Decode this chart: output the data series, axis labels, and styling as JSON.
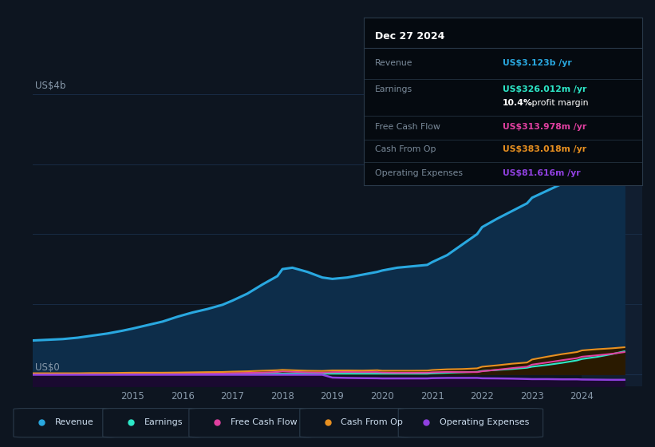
{
  "bg_color": "#0d1520",
  "chart_bg": "#0d1520",
  "grid_color": "#1a2f4a",
  "years": [
    2013.0,
    2013.3,
    2013.6,
    2013.9,
    2014.2,
    2014.5,
    2014.8,
    2015.0,
    2015.3,
    2015.6,
    2015.9,
    2016.2,
    2016.5,
    2016.8,
    2017.0,
    2017.3,
    2017.6,
    2017.9,
    2018.0,
    2018.2,
    2018.5,
    2018.8,
    2019.0,
    2019.3,
    2019.6,
    2019.9,
    2020.0,
    2020.3,
    2020.6,
    2020.9,
    2021.0,
    2021.3,
    2021.6,
    2021.9,
    2022.0,
    2022.3,
    2022.6,
    2022.9,
    2023.0,
    2023.3,
    2023.6,
    2023.9,
    2024.0,
    2024.3,
    2024.6,
    2024.85
  ],
  "revenue": [
    0.48,
    0.49,
    0.5,
    0.52,
    0.55,
    0.58,
    0.62,
    0.65,
    0.7,
    0.75,
    0.82,
    0.88,
    0.93,
    0.99,
    1.05,
    1.15,
    1.28,
    1.4,
    1.5,
    1.52,
    1.46,
    1.38,
    1.36,
    1.38,
    1.42,
    1.46,
    1.48,
    1.52,
    1.54,
    1.56,
    1.6,
    1.7,
    1.85,
    2.0,
    2.1,
    2.22,
    2.33,
    2.44,
    2.52,
    2.62,
    2.72,
    2.84,
    2.93,
    3.02,
    3.08,
    3.123
  ],
  "earnings": [
    0.005,
    0.005,
    0.005,
    0.005,
    0.005,
    0.005,
    0.005,
    0.005,
    0.005,
    0.005,
    0.005,
    0.005,
    0.005,
    0.005,
    0.005,
    0.005,
    0.005,
    0.005,
    0.005,
    0.005,
    0.005,
    0.005,
    0.005,
    0.005,
    0.005,
    0.005,
    0.005,
    0.005,
    0.005,
    0.005,
    0.01,
    0.018,
    0.025,
    0.032,
    0.045,
    0.058,
    0.072,
    0.09,
    0.105,
    0.13,
    0.16,
    0.195,
    0.215,
    0.245,
    0.285,
    0.326
  ],
  "free_cash_flow": [
    0.005,
    0.005,
    0.005,
    0.005,
    0.005,
    0.005,
    0.005,
    0.005,
    0.005,
    0.005,
    0.005,
    0.01,
    0.01,
    0.01,
    0.015,
    0.018,
    0.022,
    0.03,
    0.038,
    0.032,
    0.026,
    0.022,
    0.028,
    0.03,
    0.028,
    0.028,
    0.022,
    0.018,
    0.018,
    0.02,
    0.025,
    0.03,
    0.028,
    0.028,
    0.04,
    0.062,
    0.085,
    0.105,
    0.135,
    0.165,
    0.198,
    0.228,
    0.248,
    0.268,
    0.29,
    0.314
  ],
  "cash_from_op": [
    0.012,
    0.012,
    0.012,
    0.012,
    0.015,
    0.015,
    0.018,
    0.02,
    0.02,
    0.02,
    0.022,
    0.025,
    0.028,
    0.03,
    0.035,
    0.04,
    0.048,
    0.055,
    0.06,
    0.055,
    0.048,
    0.045,
    0.052,
    0.052,
    0.05,
    0.055,
    0.048,
    0.048,
    0.048,
    0.05,
    0.058,
    0.068,
    0.072,
    0.082,
    0.105,
    0.125,
    0.148,
    0.165,
    0.208,
    0.248,
    0.285,
    0.315,
    0.338,
    0.355,
    0.368,
    0.383
  ],
  "operating_expenses": [
    -0.01,
    -0.01,
    -0.01,
    -0.01,
    -0.01,
    -0.01,
    -0.01,
    -0.01,
    -0.01,
    -0.01,
    -0.01,
    -0.01,
    -0.01,
    -0.01,
    -0.01,
    -0.01,
    -0.01,
    -0.01,
    -0.01,
    -0.01,
    -0.01,
    -0.01,
    -0.05,
    -0.055,
    -0.058,
    -0.06,
    -0.062,
    -0.062,
    -0.062,
    -0.062,
    -0.058,
    -0.055,
    -0.055,
    -0.055,
    -0.06,
    -0.062,
    -0.065,
    -0.07,
    -0.072,
    -0.072,
    -0.075,
    -0.075,
    -0.078,
    -0.08,
    -0.082,
    -0.082
  ],
  "revenue_color": "#29a8e0",
  "revenue_fill": "#0d2d4a",
  "earnings_color": "#2de8c8",
  "earnings_fill": "#0d3030",
  "fcf_color": "#e040a0",
  "cashop_color": "#e89020",
  "opex_color": "#9040e0",
  "highlight_start": 2024.0,
  "tooltip_bg": "#050a10",
  "tooltip_title": "Dec 27 2024",
  "tooltip_revenue_label": "Revenue",
  "tooltip_revenue_val": "US$3.123b /yr",
  "tooltip_revenue_color": "#29a8e0",
  "tooltip_earnings_label": "Earnings",
  "tooltip_earnings_val": "US$326.012m /yr",
  "tooltip_earnings_color": "#2de8c8",
  "tooltip_margin_pct": "10.4%",
  "tooltip_margin_txt": " profit margin",
  "tooltip_fcf_label": "Free Cash Flow",
  "tooltip_fcf_val": "US$313.978m /yr",
  "tooltip_fcf_color": "#e040a0",
  "tooltip_cashop_label": "Cash From Op",
  "tooltip_cashop_val": "US$383.018m /yr",
  "tooltip_cashop_color": "#e89020",
  "tooltip_opex_label": "Operating Expenses",
  "tooltip_opex_val": "US$81.616m /yr",
  "tooltip_opex_color": "#9040e0",
  "legend_labels": [
    "Revenue",
    "Earnings",
    "Free Cash Flow",
    "Cash From Op",
    "Operating Expenses"
  ],
  "legend_colors": [
    "#29a8e0",
    "#2de8c8",
    "#e040a0",
    "#e89020",
    "#9040e0"
  ],
  "xlim": [
    2013.0,
    2025.2
  ],
  "ylim": [
    -0.18,
    4.1
  ],
  "xtick_positions": [
    2015,
    2016,
    2017,
    2018,
    2019,
    2020,
    2021,
    2022,
    2023,
    2024
  ]
}
